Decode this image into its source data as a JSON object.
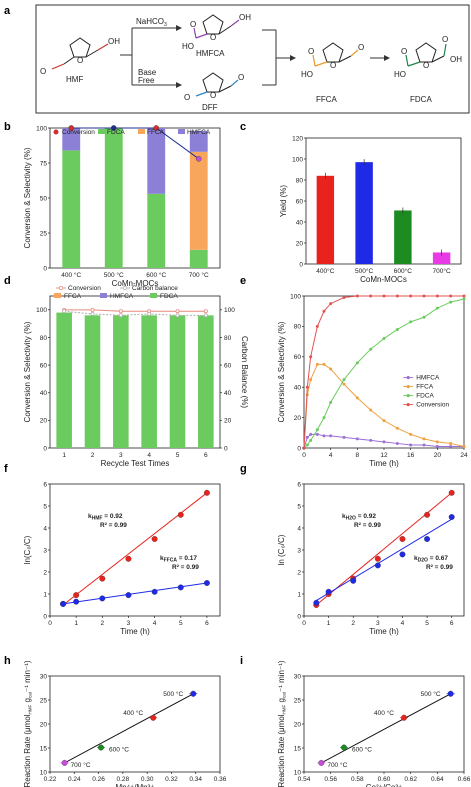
{
  "scheme": {
    "panel_label": "a",
    "hmf": "HMF",
    "nahco3": "NaHCO",
    "nahco3_sub": "3",
    "base_free_line1": "Base",
    "base_free_line2": "Free",
    "hmfca": "HMFCA",
    "dff": "DFF",
    "ffca": "FFCA",
    "fdca": "FDCA",
    "ho": "HO",
    "oh": "OH",
    "o": "O",
    "colors": {
      "hmf": "#c0392b",
      "hmfca": "#8e44ad",
      "dff": "#2e86c1",
      "ffca": "#e69b2a",
      "fdca": "#1e8449"
    }
  },
  "chart_data": [
    {
      "id": "b",
      "panel_label": "b",
      "type": "bar",
      "stacked": true,
      "categories": [
        "400 °C",
        "500 °C",
        "600 °C",
        "700 °C"
      ],
      "series": [
        {
          "name": "FDCA",
          "color": "#6ccb5f",
          "values": [
            84,
            100,
            53,
            13
          ]
        },
        {
          "name": "FFCA",
          "color": "#f7a65b",
          "values": [
            0,
            0,
            0,
            70
          ]
        },
        {
          "name": "HMFCA",
          "color": "#8b7fd6",
          "values": [
            16,
            0,
            47,
            15
          ]
        }
      ],
      "line": {
        "name": "Conversion",
        "color": "#1d2f8f",
        "values": [
          100,
          100,
          100,
          78
        ],
        "marker_color": "#d32f2f",
        "marker_last_color": "#c44fd6"
      },
      "ylabel": "Conversion & Selectivity (%)",
      "xlabel": "CoMn-MOCs",
      "ylim": [
        0,
        100
      ],
      "yticks": [
        "0",
        "25",
        "50",
        "75",
        "100"
      ],
      "legend": "top"
    },
    {
      "id": "c",
      "panel_label": "c",
      "type": "bar",
      "categories": [
        "400°C",
        "500°C",
        "600°C",
        "700°C"
      ],
      "values": [
        84,
        97,
        51,
        11
      ],
      "colors": [
        "#e8231d",
        "#1f2ae6",
        "#1c8b22",
        "#e83be6"
      ],
      "ylabel": "Yield (%)",
      "xlabel": "CoMn-MOCs",
      "ylim": [
        0,
        120
      ],
      "yticks": [
        "0",
        "20",
        "40",
        "60",
        "80",
        "100",
        "120"
      ]
    },
    {
      "id": "d",
      "panel_label": "d",
      "type": "bar",
      "categories": [
        "1",
        "2",
        "3",
        "4",
        "5",
        "6"
      ],
      "series": [
        {
          "name": "FDCA",
          "color": "#6ccb5f",
          "values": [
            98,
            96,
            96,
            96,
            96,
            96
          ]
        },
        {
          "name": "HMFCA",
          "color": "#8b7fd6",
          "values": [
            0,
            0,
            0,
            0,
            0,
            0
          ]
        },
        {
          "name": "FFCA",
          "color": "#f7a65b",
          "values": [
            0,
            0,
            0,
            0,
            0,
            0
          ]
        }
      ],
      "lines": [
        {
          "name": "Conversion",
          "color": "#e8897a",
          "values": [
            100,
            100,
            99,
            99,
            99,
            99
          ]
        },
        {
          "name": "Carbon balance",
          "color": "#b0b0b0",
          "values": [
            99,
            97,
            96,
            97,
            96,
            96
          ]
        }
      ],
      "legend_labels": [
        "Conversion",
        "Carbon balance",
        "FFCA",
        "HMFCA",
        "FDCA"
      ],
      "ylabel": "Conversion & Selectivity (%)",
      "ylabel_right": "Carbon Balance (%)",
      "xlabel": "Recycle Test Times",
      "ylim": [
        0,
        110
      ],
      "yticks": [
        "0",
        "20",
        "40",
        "60",
        "80",
        "100"
      ]
    },
    {
      "id": "e",
      "panel_label": "e",
      "type": "line",
      "x": [
        0,
        0.5,
        1,
        2,
        3,
        4,
        6,
        8,
        10,
        12,
        14,
        16,
        18,
        20,
        22,
        24
      ],
      "series": [
        {
          "name": "HMFCA",
          "color": "#9b6fd6",
          "values": [
            0,
            7,
            9,
            9,
            8,
            8,
            7,
            6,
            5,
            4,
            3,
            2,
            2,
            1,
            1,
            1
          ]
        },
        {
          "name": "FFCA",
          "color": "#f0a040",
          "values": [
            0,
            35,
            45,
            55,
            55,
            52,
            42,
            33,
            25,
            18,
            13,
            9,
            6,
            4,
            3,
            1
          ]
        },
        {
          "name": "FDCA",
          "color": "#6ccb5f",
          "values": [
            0,
            2,
            5,
            12,
            20,
            30,
            45,
            56,
            65,
            72,
            78,
            83,
            86,
            92,
            96,
            98
          ]
        },
        {
          "name": "Conversion",
          "color": "#e35353",
          "values": [
            0,
            40,
            60,
            80,
            90,
            95,
            99,
            100,
            100,
            100,
            100,
            100,
            100,
            100,
            100,
            100
          ]
        }
      ],
      "ylabel": "Conversion & Selectivity (%)",
      "xlabel": "Time (h)",
      "xlim": [
        0,
        24
      ],
      "ylim": [
        0,
        100
      ],
      "xticks": [
        "0",
        "4",
        "8",
        "12",
        "16",
        "20",
        "24"
      ],
      "yticks": [
        "0",
        "20",
        "40",
        "60",
        "80",
        "100"
      ],
      "legend": "right"
    },
    {
      "id": "f",
      "panel_label": "f",
      "type": "scatter",
      "series": [
        {
          "name": "HMF",
          "color": "#e8231d",
          "x": [
            0.5,
            1,
            2,
            3,
            4,
            5,
            6
          ],
          "values": [
            0.55,
            0.95,
            1.7,
            2.6,
            3.5,
            4.6,
            5.6
          ],
          "fit": [
            0.5,
            0.5,
            6,
            5.6
          ]
        },
        {
          "name": "FFCA",
          "color": "#1f2ae6",
          "x": [
            0.5,
            1,
            2,
            3,
            4,
            5,
            6
          ],
          "values": [
            0.55,
            0.65,
            0.8,
            0.95,
            1.1,
            1.3,
            1.5
          ],
          "fit": [
            0.5,
            0.55,
            6,
            1.5
          ]
        }
      ],
      "annotations": [
        {
          "k": "k",
          "sub": "HMF",
          "val": " = 0.92",
          "r2": "R² = 0.99",
          "color": "#e8231d"
        },
        {
          "k": "k",
          "sub": "FFCA",
          "val": " = 0.17",
          "r2": "R² = 0.99",
          "color": "#1f2ae6"
        }
      ],
      "ylabel": "ln(C₀/C)",
      "xlabel": "Time (h)",
      "xlim": [
        0,
        6.5
      ],
      "ylim": [
        0,
        6
      ],
      "xticks": [
        "0",
        "1",
        "2",
        "3",
        "4",
        "5",
        "6"
      ],
      "yticks": [
        "0",
        "1",
        "2",
        "3",
        "4",
        "5",
        "6"
      ]
    },
    {
      "id": "g",
      "panel_label": "g",
      "type": "scatter",
      "series": [
        {
          "name": "H2O",
          "color": "#e8231d",
          "x": [
            0.5,
            1,
            2,
            3,
            4,
            5,
            6
          ],
          "values": [
            0.5,
            1.0,
            1.7,
            2.6,
            3.5,
            4.6,
            5.6
          ],
          "fit": [
            0.5,
            0.5,
            6,
            5.6
          ]
        },
        {
          "name": "D2O",
          "color": "#1f2ae6",
          "x": [
            0.5,
            1,
            2,
            3,
            4,
            5,
            6
          ],
          "values": [
            0.6,
            1.1,
            1.6,
            2.3,
            2.8,
            3.5,
            4.5
          ],
          "fit": [
            0.5,
            0.7,
            6,
            4.4
          ]
        }
      ],
      "annotations": [
        {
          "k": "k",
          "sub": "H2O",
          "val": " = 0.92",
          "r2": "R² = 0.99",
          "color": "#e8231d"
        },
        {
          "k": "k",
          "sub": "D2O",
          "val": " = 0.67",
          "r2": "R² = 0.99",
          "color": "#1f2ae6"
        }
      ],
      "ylabel": "ln (C₀/C)",
      "xlabel": "Time (h)",
      "xlim": [
        0,
        6.5
      ],
      "ylim": [
        0,
        6
      ],
      "xticks": [
        "0",
        "1",
        "2",
        "3",
        "4",
        "5",
        "6"
      ],
      "yticks": [
        "0",
        "1",
        "2",
        "3",
        "4",
        "5",
        "6"
      ]
    },
    {
      "id": "h",
      "panel_label": "h",
      "type": "scatter",
      "points": [
        {
          "label": "500 °C",
          "x": 0.338,
          "y": 26.3,
          "color": "#1f2ae6"
        },
        {
          "label": "400 °C",
          "x": 0.305,
          "y": 21.3,
          "color": "#e8231d"
        },
        {
          "label": "600 °C",
          "x": 0.262,
          "y": 15.1,
          "color": "#1c8b22"
        },
        {
          "label": "700 °C",
          "x": 0.232,
          "y": 11.9,
          "color": "#c44fd6"
        }
      ],
      "fit": [
        0.232,
        11.9,
        0.338,
        26.3
      ],
      "ylabel": "Reaction Rate (μmol",
      "ylabel_sub1": "HMF",
      "ylabel_mid": " g",
      "ylabel_sub2": "cat",
      "ylabel_end": "⁻¹ min⁻¹)",
      "xlabel": "Mn⁴⁺/Mn³⁺",
      "xlim": [
        0.22,
        0.36
      ],
      "ylim": [
        10,
        30
      ],
      "xticks": [
        "0.22",
        "0.24",
        "0.26",
        "0.28",
        "0.30",
        "0.32",
        "0.34",
        "0.36"
      ],
      "yticks": [
        "10",
        "15",
        "20",
        "25",
        "30"
      ]
    },
    {
      "id": "i",
      "panel_label": "i",
      "type": "scatter",
      "points": [
        {
          "label": "500 °C",
          "x": 0.65,
          "y": 26.3,
          "color": "#1f2ae6"
        },
        {
          "label": "400 °C",
          "x": 0.615,
          "y": 21.3,
          "color": "#e8231d"
        },
        {
          "label": "600 °C",
          "x": 0.57,
          "y": 15.1,
          "color": "#1c8b22"
        },
        {
          "label": "700 °C",
          "x": 0.553,
          "y": 11.9,
          "color": "#c44fd6"
        }
      ],
      "fit": [
        0.553,
        11.9,
        0.65,
        26.3
      ],
      "ylabel": "Reaction Rate (μmol",
      "ylabel_sub1": "HMF",
      "ylabel_mid": " g",
      "ylabel_sub2": "cat",
      "ylabel_end": "⁻¹ min⁻¹)",
      "xlabel": "Co²⁺/Co³⁺",
      "xlim": [
        0.54,
        0.66
      ],
      "ylim": [
        10,
        30
      ],
      "xticks": [
        "0.54",
        "0.56",
        "0.58",
        "0.60",
        "0.62",
        "0.64",
        "0.66"
      ],
      "yticks": [
        "10",
        "15",
        "20",
        "25",
        "30"
      ]
    }
  ]
}
